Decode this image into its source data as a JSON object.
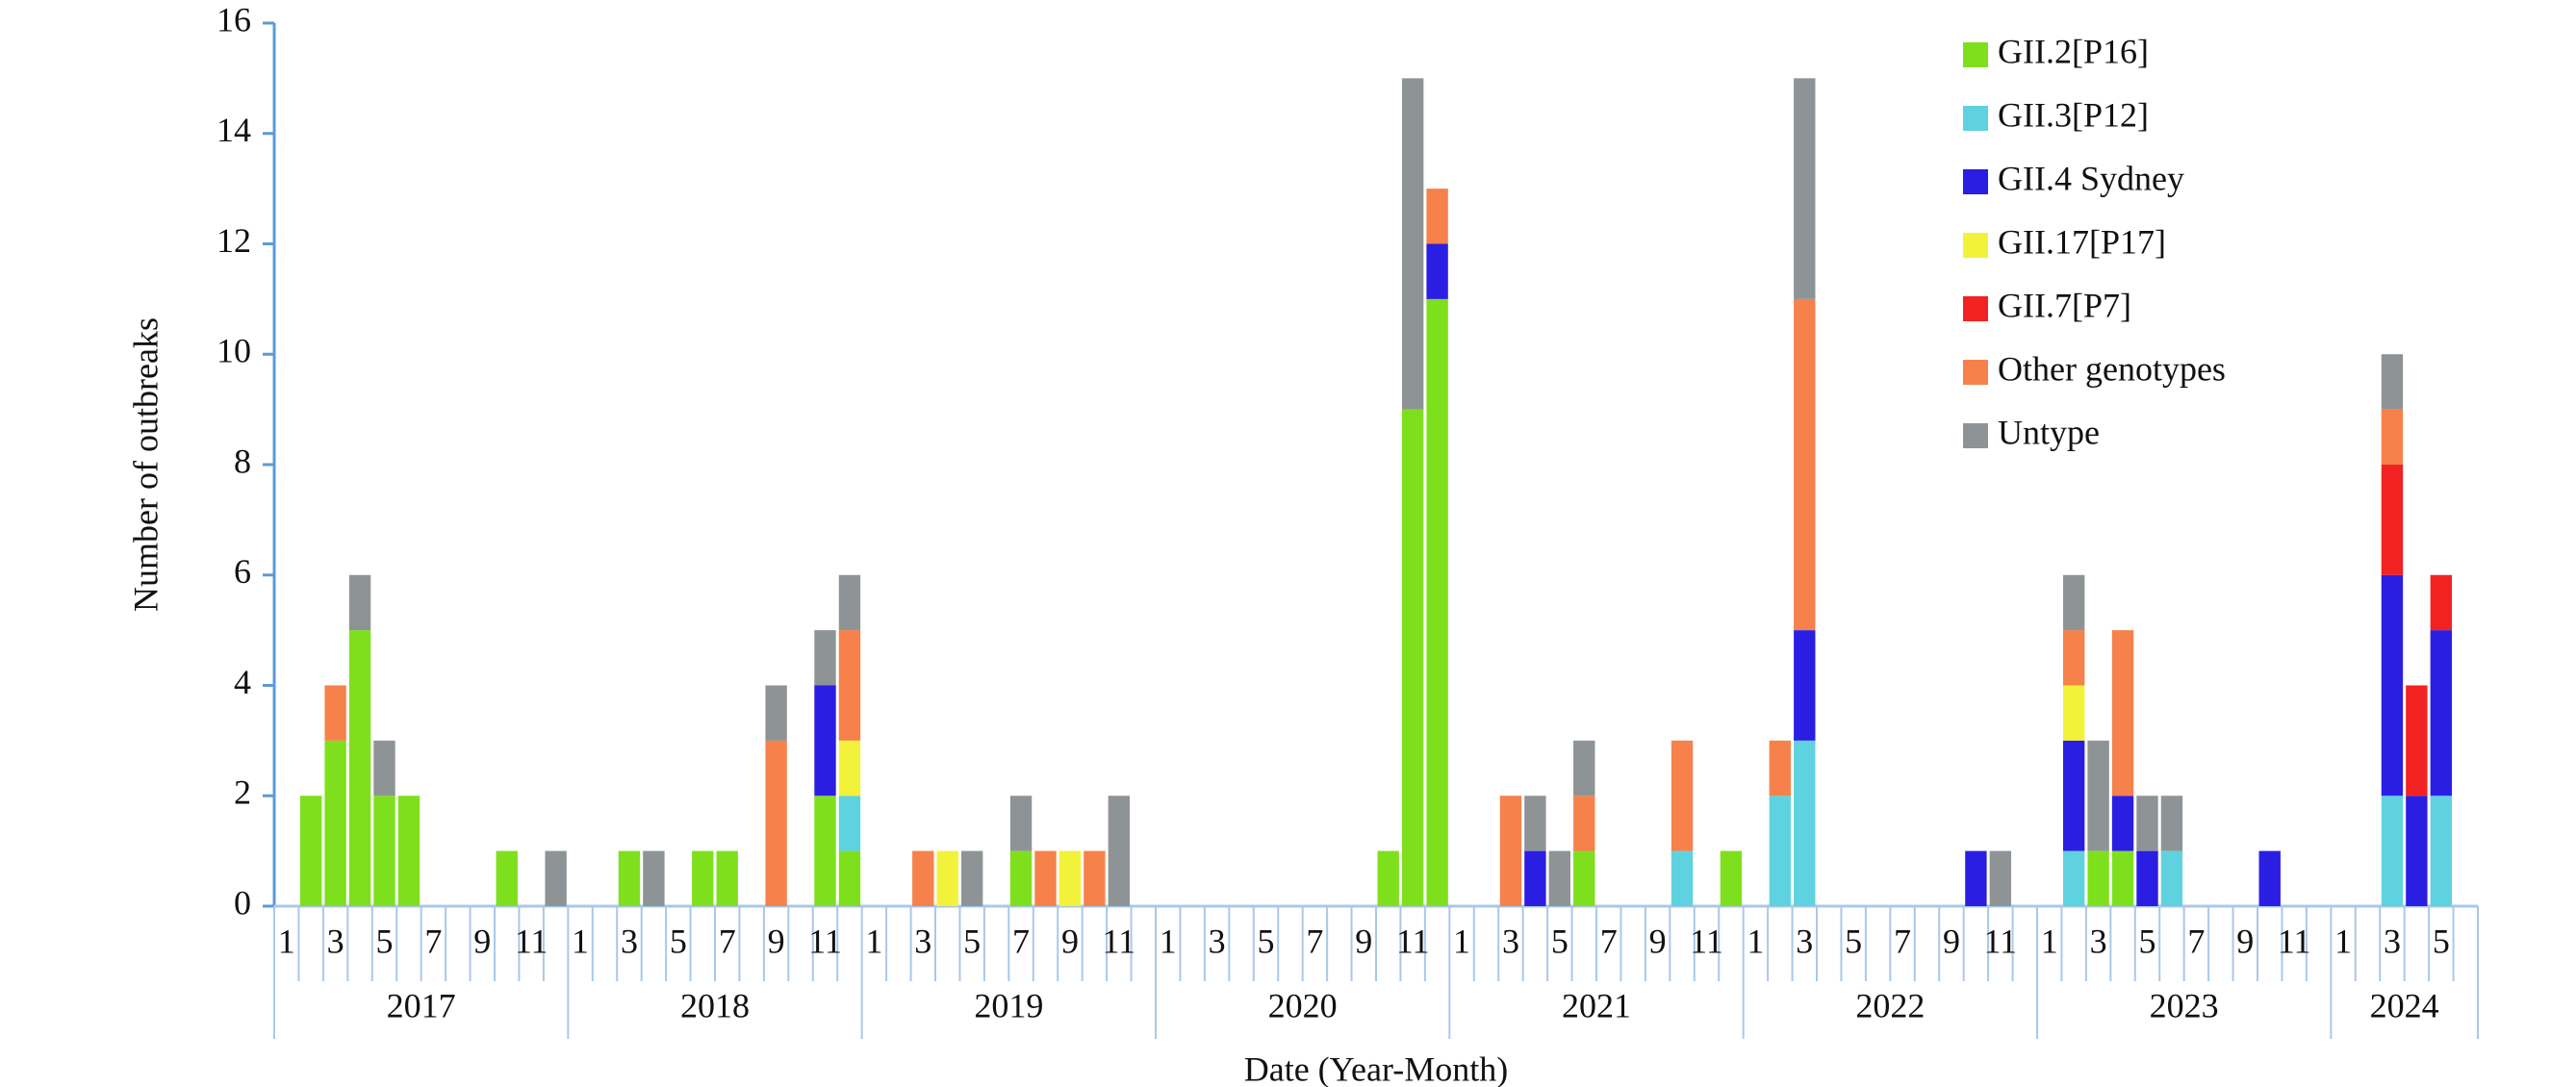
{
  "chart_data": {
    "type": "stacked-bar",
    "y_label": "Number of outbreaks",
    "x_label": "Date (Year-Month)",
    "ylim": [
      0,
      16
    ],
    "yticks": [
      0,
      2,
      4,
      6,
      8,
      10,
      12,
      14,
      16
    ],
    "categories": [
      "1",
      null,
      "3",
      null,
      "5",
      null,
      "7",
      null,
      "9",
      null,
      "11",
      null,
      "1",
      null,
      "3",
      null,
      "5",
      null,
      "7",
      null,
      "9",
      null,
      "11",
      null,
      "1",
      null,
      "3",
      null,
      "5",
      null,
      "7",
      null,
      "9",
      null,
      "11",
      null,
      "1",
      null,
      "3",
      null,
      "5",
      null,
      "7",
      null,
      "9",
      null,
      "11",
      null,
      "1",
      null,
      "3",
      null,
      "5",
      null,
      "7",
      null,
      "9",
      null,
      "11",
      null,
      "1",
      null,
      "3",
      null,
      "5",
      null,
      "7",
      null,
      "9",
      null,
      "11",
      null,
      "1",
      null,
      "3",
      null,
      "5",
      null,
      "7",
      null,
      "9",
      null,
      "11",
      null,
      "1",
      null,
      "3",
      null,
      "5",
      null
    ],
    "years": [
      "2017",
      "2018",
      "2019",
      "2020",
      "2021",
      "2022",
      "2023",
      "2024"
    ],
    "legend": "upper right",
    "series": [
      {
        "name": "GII.2[P16]",
        "color": "#7ee01c",
        "values": [
          0,
          2,
          3,
          5,
          2,
          2,
          0,
          0,
          0,
          1,
          0,
          0,
          0,
          0,
          1,
          0,
          0,
          1,
          1,
          0,
          0,
          0,
          2,
          1,
          0,
          0,
          0,
          0,
          0,
          0,
          1,
          0,
          0,
          0,
          0,
          0,
          0,
          0,
          0,
          0,
          0,
          0,
          0,
          0,
          0,
          1,
          9,
          11,
          0,
          0,
          0,
          0,
          0,
          1,
          0,
          0,
          0,
          0,
          0,
          1,
          0,
          0,
          0,
          0,
          0,
          0,
          0,
          0,
          0,
          0,
          0,
          0,
          0,
          0,
          1,
          1,
          0,
          0,
          0,
          0,
          0,
          0,
          0,
          0,
          0,
          0,
          0,
          0,
          0,
          0
        ]
      },
      {
        "name": "GII.3[P12]",
        "color": "#5ed3df",
        "values": [
          0,
          0,
          0,
          0,
          0,
          0,
          0,
          0,
          0,
          0,
          0,
          0,
          0,
          0,
          0,
          0,
          0,
          0,
          0,
          0,
          0,
          0,
          0,
          1,
          0,
          0,
          0,
          0,
          0,
          0,
          0,
          0,
          0,
          0,
          0,
          0,
          0,
          0,
          0,
          0,
          0,
          0,
          0,
          0,
          0,
          0,
          0,
          0,
          0,
          0,
          0,
          0,
          0,
          0,
          0,
          0,
          0,
          1,
          0,
          0,
          0,
          2,
          3,
          0,
          0,
          0,
          0,
          0,
          0,
          0,
          0,
          0,
          0,
          1,
          0,
          0,
          0,
          1,
          0,
          0,
          0,
          0,
          0,
          0,
          0,
          0,
          2,
          0,
          2,
          0
        ]
      },
      {
        "name": "GII.4 Sydney",
        "color": "#2b1ee3",
        "values": [
          0,
          0,
          0,
          0,
          0,
          0,
          0,
          0,
          0,
          0,
          0,
          0,
          0,
          0,
          0,
          0,
          0,
          0,
          0,
          0,
          0,
          0,
          2,
          0,
          0,
          0,
          0,
          0,
          0,
          0,
          0,
          0,
          0,
          0,
          0,
          0,
          0,
          0,
          0,
          0,
          0,
          0,
          0,
          0,
          0,
          0,
          0,
          1,
          0,
          0,
          0,
          1,
          0,
          0,
          0,
          0,
          0,
          0,
          0,
          0,
          0,
          0,
          2,
          0,
          0,
          0,
          0,
          0,
          0,
          1,
          0,
          0,
          0,
          2,
          0,
          1,
          1,
          0,
          0,
          0,
          0,
          1,
          0,
          0,
          0,
          0,
          4,
          2,
          3,
          0
        ]
      },
      {
        "name": "GII.17[P17]",
        "color": "#f3f23a",
        "values": [
          0,
          0,
          0,
          0,
          0,
          0,
          0,
          0,
          0,
          0,
          0,
          0,
          0,
          0,
          0,
          0,
          0,
          0,
          0,
          0,
          0,
          0,
          0,
          1,
          0,
          0,
          0,
          1,
          0,
          0,
          0,
          0,
          1,
          0,
          0,
          0,
          0,
          0,
          0,
          0,
          0,
          0,
          0,
          0,
          0,
          0,
          0,
          0,
          0,
          0,
          0,
          0,
          0,
          0,
          0,
          0,
          0,
          0,
          0,
          0,
          0,
          0,
          0,
          0,
          0,
          0,
          0,
          0,
          0,
          0,
          0,
          0,
          0,
          1,
          0,
          0,
          0,
          0,
          0,
          0,
          0,
          0,
          0,
          0,
          0,
          0,
          0,
          0,
          0,
          0
        ]
      },
      {
        "name": "GII.7[P7]",
        "color": "#f32222",
        "values": [
          0,
          0,
          0,
          0,
          0,
          0,
          0,
          0,
          0,
          0,
          0,
          0,
          0,
          0,
          0,
          0,
          0,
          0,
          0,
          0,
          0,
          0,
          0,
          0,
          0,
          0,
          0,
          0,
          0,
          0,
          0,
          0,
          0,
          0,
          0,
          0,
          0,
          0,
          0,
          0,
          0,
          0,
          0,
          0,
          0,
          0,
          0,
          0,
          0,
          0,
          0,
          0,
          0,
          0,
          0,
          0,
          0,
          0,
          0,
          0,
          0,
          0,
          0,
          0,
          0,
          0,
          0,
          0,
          0,
          0,
          0,
          0,
          0,
          0,
          0,
          0,
          0,
          0,
          0,
          0,
          0,
          0,
          0,
          0,
          0,
          0,
          2,
          2,
          1,
          0
        ]
      },
      {
        "name": "Other genotypes",
        "color": "#f6814b",
        "values": [
          0,
          0,
          1,
          0,
          0,
          0,
          0,
          0,
          0,
          0,
          0,
          0,
          0,
          0,
          0,
          0,
          0,
          0,
          0,
          0,
          3,
          0,
          0,
          2,
          0,
          0,
          1,
          0,
          0,
          0,
          0,
          1,
          0,
          1,
          0,
          0,
          0,
          0,
          0,
          0,
          0,
          0,
          0,
          0,
          0,
          0,
          0,
          1,
          0,
          0,
          2,
          0,
          0,
          1,
          0,
          0,
          0,
          2,
          0,
          0,
          0,
          1,
          6,
          0,
          0,
          0,
          0,
          0,
          0,
          0,
          0,
          0,
          0,
          1,
          0,
          3,
          0,
          0,
          0,
          0,
          0,
          0,
          0,
          0,
          0,
          0,
          1,
          0,
          0,
          0
        ]
      },
      {
        "name": "Untype",
        "color": "#8e9496",
        "values": [
          0,
          0,
          0,
          1,
          1,
          0,
          0,
          0,
          0,
          0,
          0,
          1,
          0,
          0,
          0,
          1,
          0,
          0,
          0,
          0,
          1,
          0,
          1,
          1,
          0,
          0,
          0,
          0,
          1,
          0,
          1,
          0,
          0,
          0,
          2,
          0,
          0,
          0,
          0,
          0,
          0,
          0,
          0,
          0,
          0,
          0,
          6,
          0,
          0,
          0,
          0,
          1,
          1,
          1,
          0,
          0,
          0,
          0,
          0,
          0,
          0,
          0,
          4,
          0,
          0,
          0,
          0,
          0,
          0,
          0,
          1,
          0,
          0,
          1,
          2,
          0,
          1,
          1,
          0,
          0,
          0,
          0,
          0,
          0,
          0,
          0,
          1,
          0,
          0,
          0
        ]
      }
    ]
  }
}
